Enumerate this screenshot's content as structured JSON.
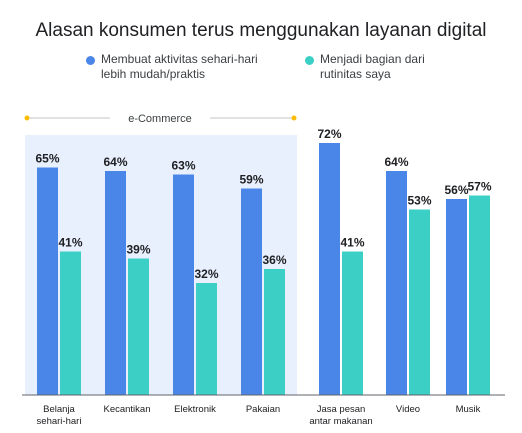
{
  "chart_data": {
    "type": "bar",
    "title": "Alasan konsumen terus menggunakan layanan digital",
    "categories": [
      [
        "Belanja",
        "sehari-hari"
      ],
      [
        "Kecantikan"
      ],
      [
        "Elektronik"
      ],
      [
        "Pakaian"
      ],
      [
        "Jasa pesan",
        "antar makanan"
      ],
      [
        "Video"
      ],
      [
        "Musik"
      ]
    ],
    "series": [
      {
        "name": [
          "Membuat aktivitas sehari-hari",
          "lebih mudah/praktis"
        ],
        "color": "#4a86e8",
        "values": [
          65,
          64,
          63,
          59,
          72,
          64,
          56
        ],
        "labels": [
          "65%",
          "64%",
          "63%",
          "59%",
          "72%",
          "64%",
          "56%"
        ]
      },
      {
        "name": [
          "Menjadi bagian dari",
          "rutinitas saya"
        ],
        "color": "#3ccfc6",
        "values": [
          41,
          39,
          32,
          36,
          41,
          53,
          57
        ],
        "labels": [
          "41%",
          "39%",
          "32%",
          "36%",
          "41%",
          "53%",
          "57%"
        ]
      }
    ],
    "group": {
      "label": "e-Commerce",
      "categories": [
        0,
        1,
        2,
        3
      ],
      "highlight_color": "#e8f0fe",
      "marker_color": "#fbbc04"
    },
    "ylim": [
      0,
      100
    ],
    "grid": false,
    "legend": "top"
  }
}
